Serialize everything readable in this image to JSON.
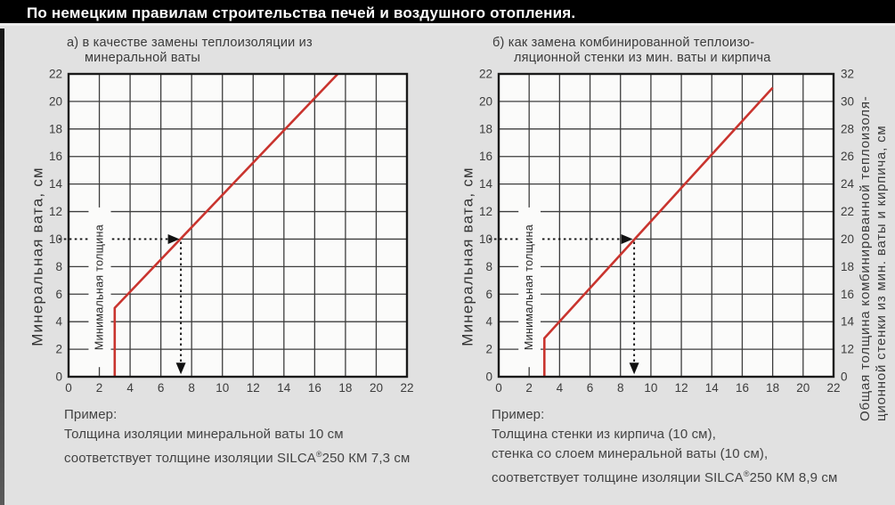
{
  "page": {
    "bg_color": "#e1e1e1",
    "left_strip_color": "#3f3f3f"
  },
  "header": {
    "title": "По немецким правилам строительства печей и воздушного отопления.",
    "bg_color": "#000000",
    "text_color": "#ffffff"
  },
  "chart_data": [
    {
      "id": "a",
      "type": "line",
      "title": "а) в качестве замены теплоизоляции из",
      "title_line2": "минеральной ваты",
      "xlabel": "",
      "ylabel": "Минеральная вата, см",
      "xlim": [
        0,
        22
      ],
      "ylim": [
        0,
        22
      ],
      "xticks": [
        0,
        2,
        4,
        6,
        8,
        10,
        12,
        14,
        16,
        18,
        20,
        22
      ],
      "yticks": [
        0,
        2,
        4,
        6,
        8,
        10,
        12,
        14,
        16,
        18,
        20,
        22
      ],
      "grid": true,
      "legend": "none",
      "plot_bg": "#fbfbfa",
      "grid_color": "#3d3d3d",
      "border_color": "#1a1a1a",
      "line_color": "#c9342e",
      "series": [
        {
          "name": "SILCA 250 КМ",
          "points": [
            [
              3,
              0
            ],
            [
              3,
              5
            ],
            [
              17.5,
              22
            ]
          ]
        }
      ],
      "min_thickness": {
        "label": "Минимальная толщина",
        "x": 3
      },
      "example_arrow": {
        "y": 10,
        "x": 7.3
      },
      "example": {
        "line1": "Пример:",
        "line2": "Толщина изоляции минеральной ваты 10 см",
        "line3_pre": "соответствует толщине изоляции SILCA",
        "line3_sup": "®",
        "line3_post": "250 КМ 7,3 см"
      }
    },
    {
      "id": "b",
      "type": "line",
      "title": "б) как замена комбинированной теплоизо-",
      "title_line2": "ляционной стенки из мин. ваты и кирпича",
      "xlabel": "",
      "ylabel": "Минеральная вата, см",
      "ylabel_right_line1": "Общая толщина комбинированной теплоизоля-",
      "ylabel_right_line2": "ционной стенки из мин. ваты и кирпича, см",
      "xlim": [
        0,
        22
      ],
      "ylim": [
        0,
        22
      ],
      "xticks": [
        0,
        2,
        4,
        6,
        8,
        10,
        12,
        14,
        16,
        18,
        20,
        22
      ],
      "yticks": [
        0,
        2,
        4,
        6,
        8,
        10,
        12,
        14,
        16,
        18,
        20,
        22
      ],
      "right_yticks": [
        {
          "pos": 0,
          "label": "0"
        },
        {
          "pos": 2,
          "label": "12"
        },
        {
          "pos": 4,
          "label": "14"
        },
        {
          "pos": 6,
          "label": "16"
        },
        {
          "pos": 8,
          "label": "18"
        },
        {
          "pos": 10,
          "label": "20"
        },
        {
          "pos": 12,
          "label": "22"
        },
        {
          "pos": 14,
          "label": "24"
        },
        {
          "pos": 16,
          "label": "26"
        },
        {
          "pos": 18,
          "label": "28"
        },
        {
          "pos": 20,
          "label": "30"
        },
        {
          "pos": 22,
          "label": "32"
        }
      ],
      "grid": true,
      "legend": "none",
      "plot_bg": "#fbfbfa",
      "grid_color": "#3d3d3d",
      "border_color": "#1a1a1a",
      "line_color": "#c9342e",
      "series": [
        {
          "name": "SILCA 250 КМ",
          "points": [
            [
              3,
              0
            ],
            [
              3,
              2.8
            ],
            [
              18,
              21
            ]
          ]
        }
      ],
      "min_thickness": {
        "label": "Минимальная толщина",
        "x": 3
      },
      "example_arrow": {
        "y": 10,
        "x": 8.9
      },
      "example": {
        "line1": "Пример:",
        "line2": "Толщина стенки из кирпича (10 см),",
        "line3": "стенка со слоем минеральной ваты (10 см),",
        "line4_pre": "соответствует толщине изоляции SILCA",
        "line4_sup": "®",
        "line4_post": "250 КМ 8,9 см"
      }
    }
  ]
}
